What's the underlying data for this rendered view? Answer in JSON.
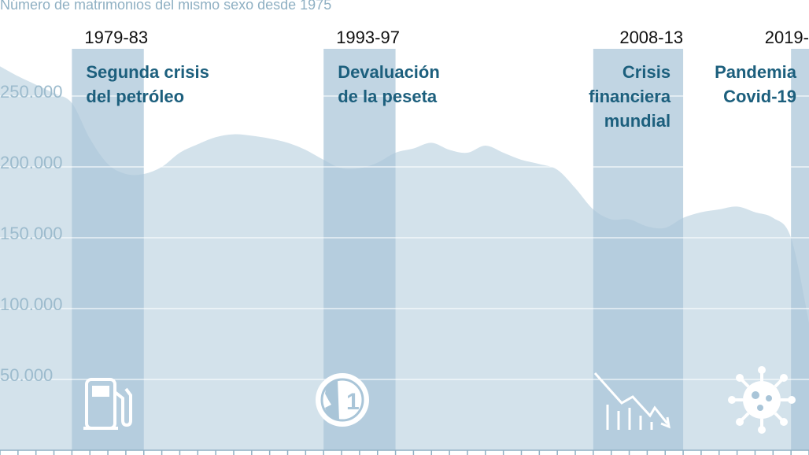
{
  "chart_data": {
    "type": "area",
    "subtitle": "Número de matrimonios del mismo sexo desde 1975",
    "xlim": [
      1975,
      2020
    ],
    "ylim": [
      0,
      280000
    ],
    "yticks": [
      {
        "value": 250000,
        "label": "250.000"
      },
      {
        "value": 200000,
        "label": "200.000"
      },
      {
        "value": 150000,
        "label": "150.000"
      },
      {
        "value": 100000,
        "label": "100.000"
      },
      {
        "value": 50000,
        "label": "50.000"
      }
    ],
    "grid": true,
    "x": [
      1975,
      1976,
      1977,
      1978,
      1979,
      1980,
      1981,
      1982,
      1983,
      1984,
      1985,
      1986,
      1987,
      1988,
      1989,
      1990,
      1991,
      1992,
      1993,
      1994,
      1995,
      1996,
      1997,
      1998,
      1999,
      2000,
      2001,
      2002,
      2003,
      2004,
      2005,
      2006,
      2007,
      2008,
      2009,
      2010,
      2011,
      2012,
      2013,
      2014,
      2015,
      2016,
      2017,
      2018,
      2019,
      2020
    ],
    "values": [
      271000,
      264000,
      258000,
      252000,
      245000,
      220000,
      202000,
      195000,
      195000,
      200000,
      210000,
      216000,
      221000,
      223000,
      222000,
      220000,
      217000,
      212000,
      205000,
      199000,
      199000,
      203000,
      210000,
      213000,
      217000,
      212000,
      210000,
      215000,
      210000,
      205000,
      202000,
      198000,
      185000,
      170000,
      163000,
      163000,
      158000,
      157000,
      164000,
      168000,
      170000,
      172000,
      168000,
      164000,
      150000,
      90000
    ],
    "periods": [
      {
        "label": "1979-83",
        "start": 1979,
        "end": 1983,
        "event": [
          "Segunda crisis",
          "del petróleo"
        ],
        "align": "left",
        "icon": "gas-pump-icon"
      },
      {
        "label": "1993-97",
        "start": 1993,
        "end": 1997,
        "event": [
          "Devaluación",
          "de la peseta"
        ],
        "align": "left",
        "icon": "peseta-coin-icon"
      },
      {
        "label": "2008-13",
        "start": 2008,
        "end": 2013,
        "event": [
          "Crisis",
          "financiera",
          "mundial"
        ],
        "align": "right",
        "icon": "falling-chart-icon"
      },
      {
        "label": "2019-",
        "start": 2019,
        "end": 2020,
        "event": [
          "Pandemia",
          "Covid-19"
        ],
        "align": "right",
        "icon": "virus-icon"
      }
    ],
    "colors": {
      "area": "#d3e2eb",
      "band": "#a9c5d8",
      "gridline": "#ffffff",
      "event_text": "#1c5f7d",
      "axis_text": "#9cbbcd"
    }
  }
}
